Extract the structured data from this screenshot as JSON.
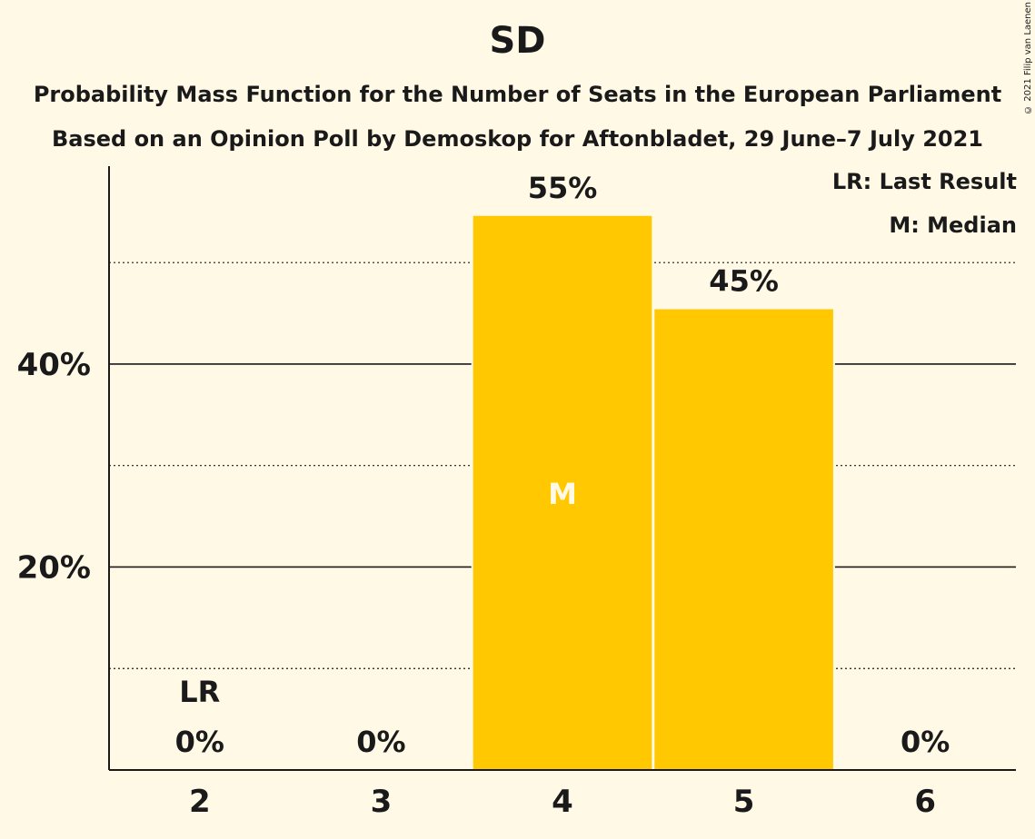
{
  "colors": {
    "background": "#FFF9E6",
    "bar": "#FFC800",
    "text": "#1a1a1a",
    "median_label": "#FFF9E6"
  },
  "chart_data": {
    "type": "bar",
    "title": "SD",
    "subtitle": "Probability Mass Function for the Number of Seats in the European Parliament",
    "subtitle2": "Based on an Opinion Poll by Demoskop for Aftonbladet, 29 June–7 July 2021",
    "copyright": "© 2021 Filip van Laenen",
    "categories": [
      "2",
      "3",
      "4",
      "5",
      "6"
    ],
    "values": [
      0,
      0,
      54.6,
      45.4,
      0
    ],
    "value_labels": [
      "0%",
      "0%",
      "55%",
      "45%",
      "0%"
    ],
    "ylim": [
      0,
      59.5
    ],
    "yticks": [
      {
        "value": 20,
        "label": "20%"
      },
      {
        "value": 40,
        "label": "40%"
      }
    ],
    "minor_gridlines": [
      10,
      30,
      50
    ],
    "last_result": {
      "category": "2",
      "label": "LR"
    },
    "median": {
      "category": "4",
      "label": "M"
    },
    "legend": [
      "LR: Last Result",
      "M: Median"
    ],
    "legend_position": "top-right"
  }
}
